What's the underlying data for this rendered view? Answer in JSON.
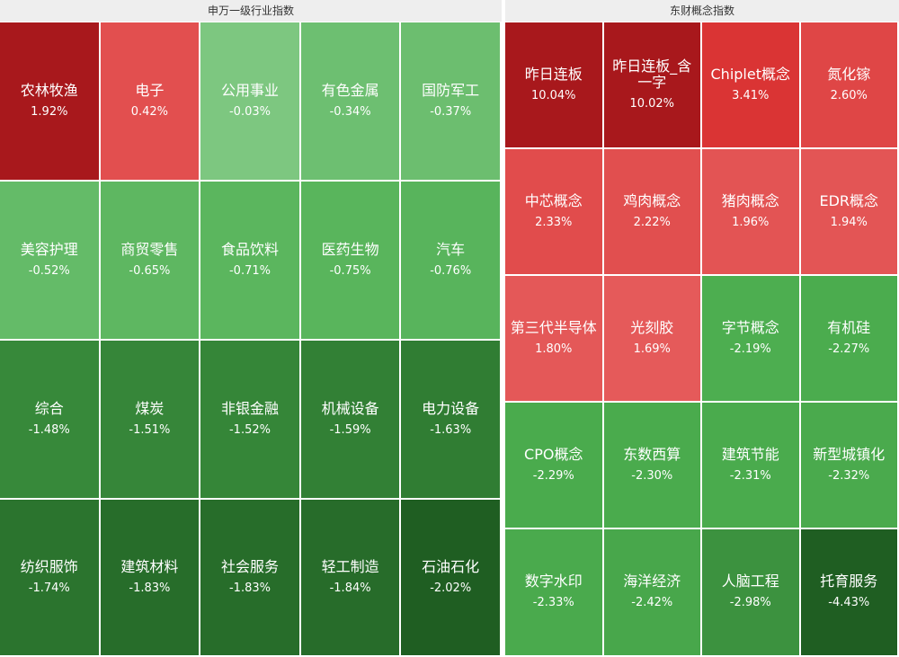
{
  "chart_data": [
    {
      "type": "treemap",
      "title": "申万一级行业指数",
      "unit": "%",
      "items": [
        {
          "name": "农林牧渔",
          "value": 1.92,
          "label": "1.92%"
        },
        {
          "name": "电子",
          "value": 0.42,
          "label": "0.42%"
        },
        {
          "name": "公用事业",
          "value": -0.03,
          "label": "-0.03%"
        },
        {
          "name": "有色金属",
          "value": -0.34,
          "label": "-0.34%"
        },
        {
          "name": "国防军工",
          "value": -0.37,
          "label": "-0.37%"
        },
        {
          "name": "美容护理",
          "value": -0.52,
          "label": "-0.52%"
        },
        {
          "name": "商贸零售",
          "value": -0.65,
          "label": "-0.65%"
        },
        {
          "name": "食品饮料",
          "value": -0.71,
          "label": "-0.71%"
        },
        {
          "name": "医药生物",
          "value": -0.75,
          "label": "-0.75%"
        },
        {
          "name": "汽车",
          "value": -0.76,
          "label": "-0.76%"
        },
        {
          "name": "综合",
          "value": -1.48,
          "label": "-1.48%"
        },
        {
          "name": "煤炭",
          "value": -1.51,
          "label": "-1.51%"
        },
        {
          "name": "非银金融",
          "value": -1.52,
          "label": "-1.52%"
        },
        {
          "name": "机械设备",
          "value": -1.59,
          "label": "-1.59%"
        },
        {
          "name": "电力设备",
          "value": -1.63,
          "label": "-1.63%"
        },
        {
          "name": "纺织服饰",
          "value": -1.74,
          "label": "-1.74%"
        },
        {
          "name": "建筑材料",
          "value": -1.83,
          "label": "-1.83%"
        },
        {
          "name": "社会服务",
          "value": -1.83,
          "label": "-1.83%"
        },
        {
          "name": "轻工制造",
          "value": -1.84,
          "label": "-1.84%"
        },
        {
          "name": "石油石化",
          "value": -2.02,
          "label": "-2.02%"
        }
      ]
    },
    {
      "type": "treemap",
      "title": "东财概念指数",
      "unit": "%",
      "items": [
        {
          "name": "昨日连板",
          "value": 10.04,
          "label": "10.04%"
        },
        {
          "name": "昨日连板_含一字",
          "value": 10.02,
          "label": "10.02%"
        },
        {
          "name": "Chiplet概念",
          "value": 3.41,
          "label": "3.41%"
        },
        {
          "name": "氮化镓",
          "value": 2.6,
          "label": "2.60%"
        },
        {
          "name": "中芯概念",
          "value": 2.33,
          "label": "2.33%"
        },
        {
          "name": "鸡肉概念",
          "value": 2.22,
          "label": "2.22%"
        },
        {
          "name": "猪肉概念",
          "value": 1.96,
          "label": "1.96%"
        },
        {
          "name": "EDR概念",
          "value": 1.94,
          "label": "1.94%"
        },
        {
          "name": "第三代半导体",
          "value": 1.8,
          "label": "1.80%"
        },
        {
          "name": "光刻胶",
          "value": 1.69,
          "label": "1.69%"
        },
        {
          "name": "字节概念",
          "value": -2.19,
          "label": "-2.19%"
        },
        {
          "name": "有机硅",
          "value": -2.27,
          "label": "-2.27%"
        },
        {
          "name": "CPO概念",
          "value": -2.29,
          "label": "-2.29%"
        },
        {
          "name": "东数西算",
          "value": -2.3,
          "label": "-2.30%"
        },
        {
          "name": "建筑节能",
          "value": -2.31,
          "label": "-2.31%"
        },
        {
          "name": "新型城镇化",
          "value": -2.32,
          "label": "-2.32%"
        },
        {
          "name": "数字水印",
          "value": -2.33,
          "label": "-2.33%"
        },
        {
          "name": "海洋经济",
          "value": -2.42,
          "label": "-2.42%"
        },
        {
          "name": "人脑工程",
          "value": -2.98,
          "label": "-2.98%"
        },
        {
          "name": "托育服务",
          "value": -4.43,
          "label": "-4.43%"
        }
      ]
    }
  ],
  "colors": {
    "up_strong": "#a8181c",
    "up_mid": "#d93232",
    "up_light": "#f08080",
    "down_light": "#7ec882",
    "down_mid": "#4cae4f",
    "down_strong": "#1f5e22",
    "header_bg": "#eeeeee",
    "header_text": "#333333"
  }
}
